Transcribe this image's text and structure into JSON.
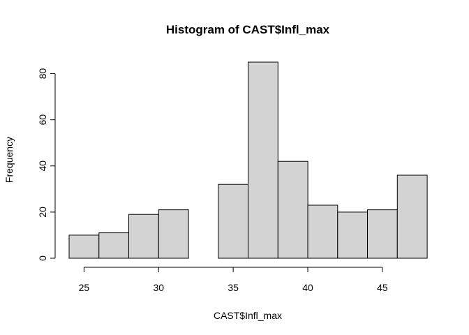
{
  "chart_data": {
    "type": "bar",
    "title": "Histogram of CAST$Infl_max",
    "xlabel": "CAST$Infl_max",
    "ylabel": "Frequency",
    "bins": [
      {
        "start": 24,
        "end": 26,
        "count": 10
      },
      {
        "start": 26,
        "end": 28,
        "count": 11
      },
      {
        "start": 28,
        "end": 30,
        "count": 19
      },
      {
        "start": 30,
        "end": 32,
        "count": 21
      },
      {
        "start": 32,
        "end": 34,
        "count": 0
      },
      {
        "start": 34,
        "end": 36,
        "count": 32
      },
      {
        "start": 36,
        "end": 38,
        "count": 85
      },
      {
        "start": 38,
        "end": 40,
        "count": 42
      },
      {
        "start": 40,
        "end": 42,
        "count": 23
      },
      {
        "start": 42,
        "end": 44,
        "count": 20
      },
      {
        "start": 44,
        "end": 46,
        "count": 21
      },
      {
        "start": 46,
        "end": 48,
        "count": 36
      }
    ],
    "xticks": [
      25,
      30,
      35,
      40,
      45
    ],
    "yticks": [
      0,
      20,
      40,
      60,
      80
    ],
    "xlim": [
      24,
      48
    ],
    "ylim": [
      0,
      85
    ],
    "bar_color": "#d3d3d3",
    "grid": false
  }
}
